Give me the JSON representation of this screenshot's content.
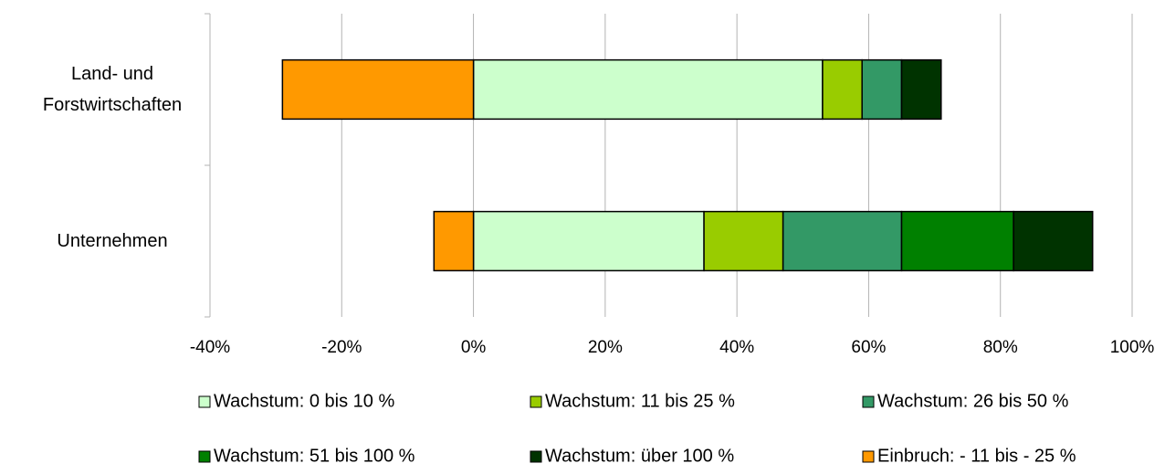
{
  "chart_data": {
    "type": "stacked-barh",
    "categories": [
      "Land- und Forstwirtschaften",
      "Unternehmen"
    ],
    "series": [
      {
        "name": "Wachstum: 0 bis 10 %",
        "color": "#ccffcc",
        "values": [
          53,
          35
        ]
      },
      {
        "name": "Wachstum: 11 bis 25 %",
        "color": "#99cc00",
        "values": [
          6,
          12
        ]
      },
      {
        "name": "Wachstum: 26 bis 50 %",
        "color": "#339966",
        "values": [
          6,
          18
        ]
      },
      {
        "name": "Wachstum: 51 bis 100 %",
        "color": "#008000",
        "values": [
          0,
          17
        ]
      },
      {
        "name": "Wachstum: über 100 %",
        "color": "#003300",
        "values": [
          6,
          12
        ]
      },
      {
        "name": "Einbruch: - 11 bis - 25 %",
        "color": "#ff9900",
        "values": [
          -29,
          -6
        ]
      }
    ],
    "xlim": [
      -40,
      100
    ],
    "xticks": [
      {
        "value": -40,
        "label": "-40%"
      },
      {
        "value": -20,
        "label": "-20%"
      },
      {
        "value": 0,
        "label": "0%"
      },
      {
        "value": 20,
        "label": "20%"
      },
      {
        "value": 40,
        "label": "40%"
      },
      {
        "value": 60,
        "label": "60%"
      },
      {
        "value": 80,
        "label": "80%"
      },
      {
        "value": 100,
        "label": "100%"
      }
    ],
    "grid": true
  }
}
